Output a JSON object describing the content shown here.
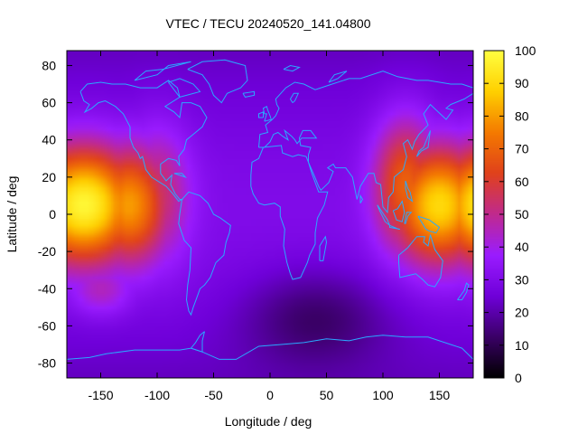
{
  "map": {
    "title": "VTEC / TECU 20240520_141.04800",
    "xlabel": "Longitude / deg",
    "ylabel": "Latitude / deg",
    "x_range": [
      -180,
      180
    ],
    "y_range": [
      -88,
      88
    ],
    "x_ticks": [
      -150,
      -100,
      -50,
      0,
      50,
      100,
      150
    ],
    "y_ticks": [
      -80,
      -60,
      -40,
      -20,
      0,
      20,
      40,
      60,
      80
    ],
    "coastline_color": "#2aa9ff",
    "colorbar": {
      "range": [
        0,
        100
      ],
      "ticks": [
        0,
        10,
        20,
        30,
        40,
        50,
        60,
        70,
        80,
        90,
        100
      ],
      "palette": [
        "#000000",
        "#3a0066",
        "#6f00d9",
        "#9a1cff",
        "#c02a8e",
        "#e0411c",
        "#f47a00",
        "#ffd000",
        "#ffff40"
      ]
    },
    "tec_features": [
      {
        "lon": -165,
        "lat": 5,
        "value": 98,
        "spread_lon": 35,
        "spread_lat": 22
      },
      {
        "lon": -125,
        "lat": 5,
        "value": 80,
        "spread_lon": 25,
        "spread_lat": 22
      },
      {
        "lon": -100,
        "lat": 10,
        "value": 55,
        "spread_lon": 20,
        "spread_lat": 25
      },
      {
        "lon": 150,
        "lat": 5,
        "value": 90,
        "spread_lon": 30,
        "spread_lat": 22
      },
      {
        "lon": 120,
        "lat": 15,
        "value": 70,
        "spread_lon": 20,
        "spread_lat": 25
      },
      {
        "lon": -150,
        "lat": -40,
        "value": 45,
        "spread_lon": 20,
        "spread_lat": 10
      }
    ]
  }
}
